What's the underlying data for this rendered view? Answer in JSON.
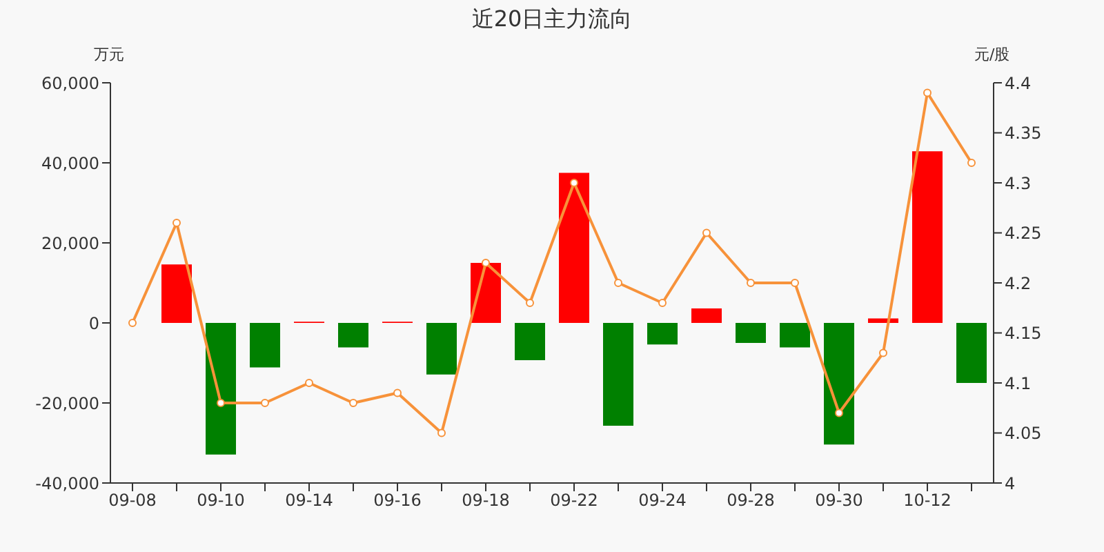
{
  "chart_data": {
    "type": "bar",
    "title": "近20日主力流向",
    "ylabel": "万元",
    "y2label": "元/股",
    "categories": [
      "09-08",
      null,
      "09-10",
      null,
      "09-14",
      null,
      "09-16",
      null,
      "09-18",
      null,
      "09-22",
      null,
      "09-24",
      null,
      "09-28",
      null,
      "09-30",
      null,
      "10-12",
      null
    ],
    "series": [
      {
        "colors": [
          "#008000",
          "#ff0000",
          "#008000",
          "#008000",
          "#ff0000",
          "#008000",
          "#ff0000",
          "#008000",
          "#ff0000",
          "#008000",
          "#ff0000",
          "#008000",
          "#008000",
          "#ff0000",
          "#008000",
          "#008000",
          "#008000",
          "#ff0000",
          "#ff0000",
          "#008000"
        ],
        "values": [
          0,
          14600,
          -32900,
          -11100,
          300,
          -6100,
          300,
          -12900,
          15000,
          -9300,
          37500,
          -25700,
          -5400,
          3600,
          -5000,
          -6100,
          -30400,
          1100,
          42900,
          -15000
        ]
      },
      {
        "type": "line",
        "axis": "y2",
        "color": "#f7923a",
        "marker": "circle",
        "values": [
          4.16,
          4.26,
          4.08,
          4.08,
          4.1,
          4.08,
          4.09,
          4.05,
          4.22,
          4.18,
          4.3,
          4.2,
          4.18,
          4.25,
          4.2,
          4.2,
          4.07,
          4.13,
          4.39,
          4.32
        ]
      }
    ],
    "ylim": [
      -40000,
      60000
    ],
    "yticks": [
      {
        "value": -40000,
        "label": "-40,000"
      },
      {
        "value": -20000,
        "label": "-20,000"
      },
      0,
      {
        "value": 20000,
        "label": "20,000"
      },
      {
        "value": 40000,
        "label": "40,000"
      },
      {
        "value": 60000,
        "label": "60,000"
      }
    ],
    "y2lim": [
      4,
      4.4
    ],
    "y2ticks": [
      4,
      4.05,
      4.1,
      4.15,
      4.2,
      4.25,
      4.3,
      4.35,
      4.4
    ],
    "grid": false,
    "legend": false
  }
}
